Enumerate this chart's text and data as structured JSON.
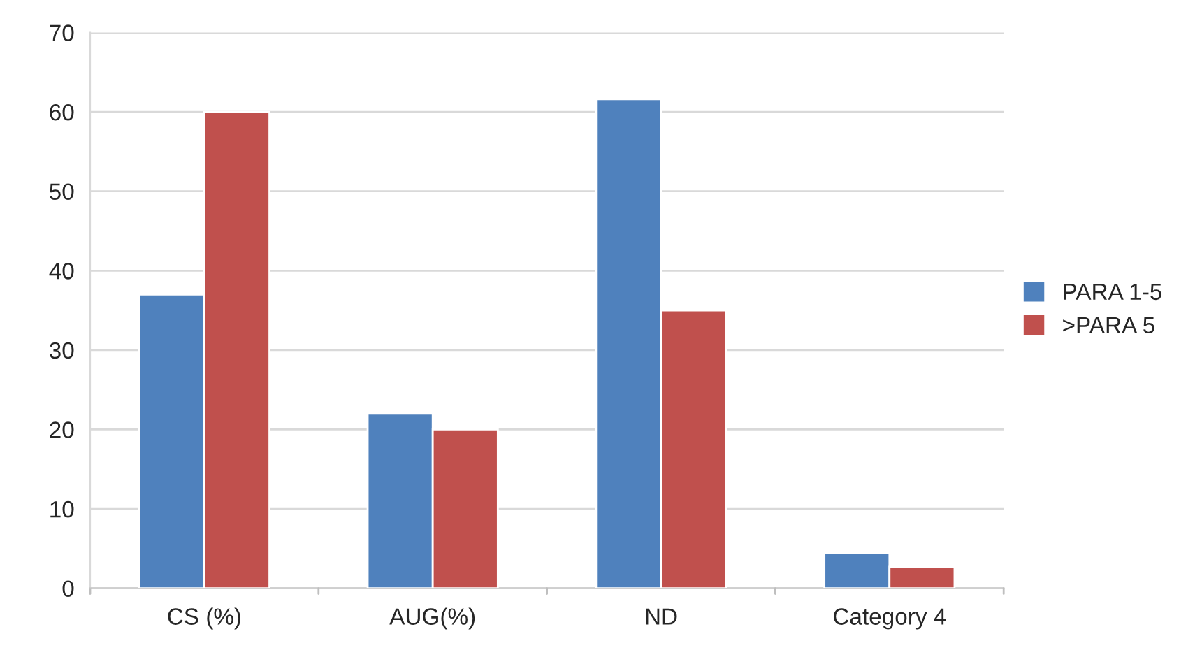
{
  "chart_data": {
    "type": "bar",
    "categories": [
      "CS (%)",
      "AUG(%)",
      "ND",
      "Category 4"
    ],
    "series": [
      {
        "name": "PARA 1-5",
        "color": "#4f81bd",
        "values": [
          37,
          22,
          61.6,
          4.4
        ]
      },
      {
        "name": ">PARA 5",
        "color": "#c0504d",
        "values": [
          60,
          20,
          35,
          2.7
        ]
      }
    ],
    "ylim": [
      0,
      70
    ],
    "yticks": [
      0,
      10,
      20,
      30,
      40,
      50,
      60,
      70
    ],
    "grid": "y",
    "legend": "right"
  }
}
